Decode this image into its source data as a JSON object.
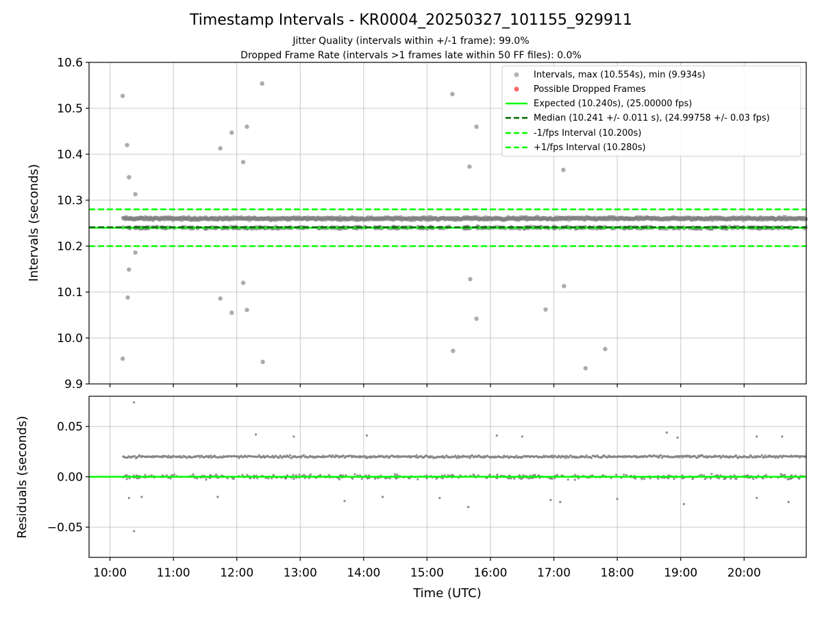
{
  "figure": {
    "title": "Timestamp Intervals - KR0004_20250327_101155_929911",
    "subtitle_1": "Jitter Quality (intervals within +/-1 frame): 99.0%",
    "subtitle_2": "Dropped Frame Rate (intervals >1 frames late within 50 FF files): 0.0%",
    "colors": {
      "points": "#808080",
      "dropped": "#ff0000",
      "expected": "#00ff00",
      "median": "#006400",
      "interval_lines": "#00ff00",
      "grid": "#b0b0b0"
    }
  },
  "chart_data": [
    {
      "type": "scatter",
      "panel": "intervals",
      "ylabel": "Intervals (seconds)",
      "xlabel": "",
      "xlim": [
        9.67,
        20.98
      ],
      "ylim": [
        9.9,
        10.6
      ],
      "grid": true,
      "legend_position": "top-right",
      "x_ticks": [
        10,
        11,
        12,
        13,
        14,
        15,
        16,
        17,
        18,
        19,
        20
      ],
      "y_ticks": [
        9.9,
        10.0,
        10.1,
        10.2,
        10.3,
        10.4,
        10.5,
        10.6
      ],
      "y_tick_labels": [
        "9.9",
        "10.0",
        "10.1",
        "10.2",
        "10.3",
        "10.4",
        "10.5",
        "10.6"
      ],
      "series": [
        {
          "name": "Intervals, max (10.554s), min (9.934s)",
          "kind": "points",
          "band_main": 10.26,
          "band_secondary": 10.24,
          "outliers": [
            [
              10.2,
              10.527
            ],
            [
              10.2,
              9.955
            ],
            [
              10.27,
              10.42
            ],
            [
              10.3,
              10.35
            ],
            [
              10.4,
              10.313
            ],
            [
              10.4,
              10.186
            ],
            [
              10.3,
              10.149
            ],
            [
              10.28,
              10.088
            ],
            [
              11.74,
              10.413
            ],
            [
              11.92,
              10.447
            ],
            [
              12.1,
              10.383
            ],
            [
              12.16,
              10.46
            ],
            [
              12.1,
              10.12
            ],
            [
              12.16,
              10.061
            ],
            [
              11.74,
              10.086
            ],
            [
              11.92,
              10.055
            ],
            [
              12.4,
              10.554
            ],
            [
              12.41,
              9.948
            ],
            [
              15.4,
              10.531
            ],
            [
              15.78,
              10.46
            ],
            [
              15.67,
              10.373
            ],
            [
              15.68,
              10.128
            ],
            [
              15.78,
              10.042
            ],
            [
              15.41,
              9.972
            ],
            [
              17.15,
              10.366
            ],
            [
              17.16,
              10.113
            ],
            [
              16.87,
              10.062
            ],
            [
              17.5,
              9.934
            ],
            [
              17.81,
              9.976
            ]
          ]
        },
        {
          "name": "Possible Dropped Frames",
          "kind": "points",
          "values": []
        },
        {
          "name": "Expected (10.240s), (25.00000 fps)",
          "kind": "hline",
          "y": 10.24,
          "style": "solid"
        },
        {
          "name": "Median (10.241 +/- 0.011 s), (24.99758 +/- 0.03 fps)",
          "kind": "hline",
          "y": 10.241,
          "style": "dashed"
        },
        {
          "name": "-1/fps Interval (10.200s)",
          "kind": "hline",
          "y": 10.2,
          "style": "dashed"
        },
        {
          "name": "+1/fps Interval (10.280s)",
          "kind": "hline",
          "y": 10.28,
          "style": "dashed"
        }
      ]
    },
    {
      "type": "scatter",
      "panel": "residuals",
      "ylabel": "Residuals (seconds)",
      "xlabel": "Time (UTC)",
      "xlim": [
        9.67,
        20.98
      ],
      "ylim": [
        -0.08,
        0.08
      ],
      "grid": true,
      "x_ticks": [
        10,
        11,
        12,
        13,
        14,
        15,
        16,
        17,
        18,
        19,
        20
      ],
      "x_tick_labels": [
        "10:00",
        "11:00",
        "12:00",
        "13:00",
        "14:00",
        "15:00",
        "16:00",
        "17:00",
        "18:00",
        "19:00",
        "20:00"
      ],
      "y_ticks": [
        -0.05,
        0.0,
        0.05
      ],
      "y_tick_labels": [
        "−0.05",
        "0.00",
        "0.05"
      ],
      "series": [
        {
          "name": "Residuals",
          "kind": "points",
          "band_main": 0.02,
          "band_secondary": 0.0,
          "outliers": [
            [
              10.38,
              0.074
            ],
            [
              10.38,
              -0.054
            ],
            [
              12.3,
              0.042
            ],
            [
              14.05,
              0.041
            ],
            [
              12.9,
              0.04
            ],
            [
              16.1,
              0.041
            ],
            [
              16.5,
              0.04
            ],
            [
              18.78,
              0.044
            ],
            [
              18.95,
              0.039
            ],
            [
              20.2,
              0.04
            ],
            [
              20.6,
              0.04
            ],
            [
              15.65,
              -0.03
            ],
            [
              17.1,
              -0.025
            ],
            [
              16.95,
              -0.023
            ],
            [
              13.7,
              -0.024
            ],
            [
              19.05,
              -0.027
            ],
            [
              20.7,
              -0.025
            ],
            [
              10.3,
              -0.021
            ],
            [
              10.5,
              -0.02
            ],
            [
              11.7,
              -0.02
            ],
            [
              14.3,
              -0.02
            ],
            [
              15.2,
              -0.021
            ],
            [
              18.0,
              -0.022
            ],
            [
              20.2,
              -0.021
            ]
          ]
        },
        {
          "name": "Zero line",
          "kind": "hline",
          "y": 0.0,
          "style": "solid"
        }
      ]
    }
  ]
}
